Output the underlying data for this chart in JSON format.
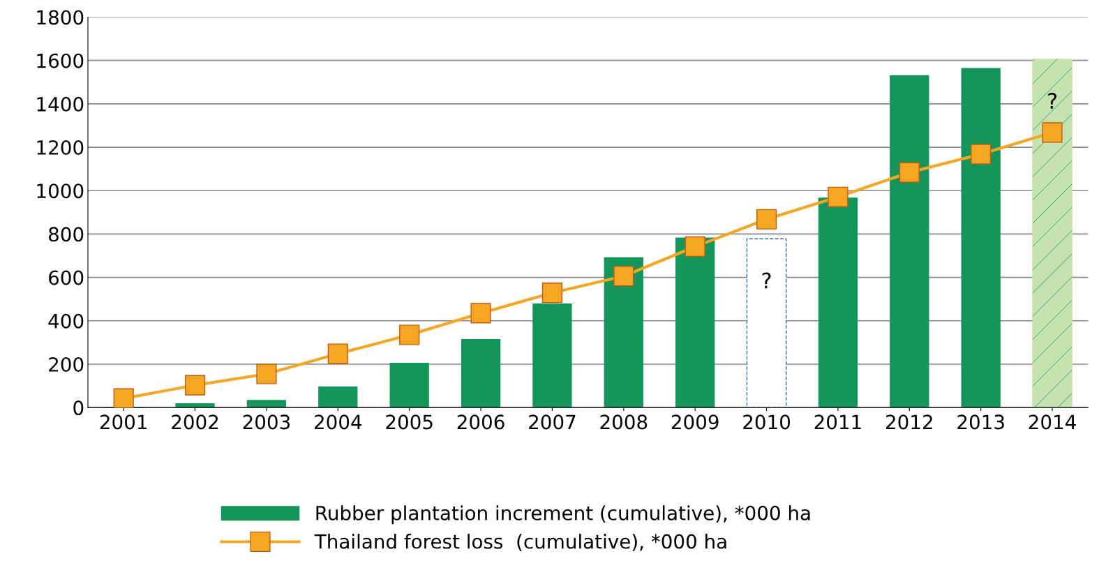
{
  "chart_data": {
    "type": "bar",
    "categories": [
      "2001",
      "2002",
      "2003",
      "2004",
      "2005",
      "2006",
      "2007",
      "2008",
      "2009",
      "2010",
      "2011",
      "2012",
      "2013",
      "2014"
    ],
    "series": [
      {
        "name": "Rubber plantation increment (cumulative), *000 ha",
        "color": "#14955a",
        "colors": [
          "#14955a",
          "#14955a",
          "#14955a",
          "#14955a",
          "#14955a",
          "#14955a",
          "#14955a",
          "#14955a",
          "#14955a",
          "#ffffff",
          "#14955a",
          "#14955a",
          "#14955a",
          "#c5e3b0"
        ],
        "values": [
          3,
          20,
          35,
          97,
          206,
          316,
          480,
          693,
          784,
          778,
          968,
          1532,
          1565,
          1606
        ]
      },
      {
        "name": "Thailand forest loss  (cumulative), *000 ha",
        "type": "line",
        "color": "#f5a623",
        "marker": "square",
        "values": [
          42,
          103,
          155,
          248,
          335,
          435,
          529,
          606,
          742,
          868,
          971,
          1084,
          1168,
          1268
        ]
      }
    ],
    "ylim": [
      0,
      1800
    ],
    "yticks": [
      0,
      200,
      400,
      600,
      800,
      1000,
      1200,
      1400,
      1600,
      1800
    ],
    "grid": "y",
    "legend": "bottom",
    "annotations": [
      {
        "text": "?",
        "x": "2010",
        "y": 778
      },
      {
        "text": "?",
        "x": "2014",
        "y": 1606
      }
    ]
  }
}
